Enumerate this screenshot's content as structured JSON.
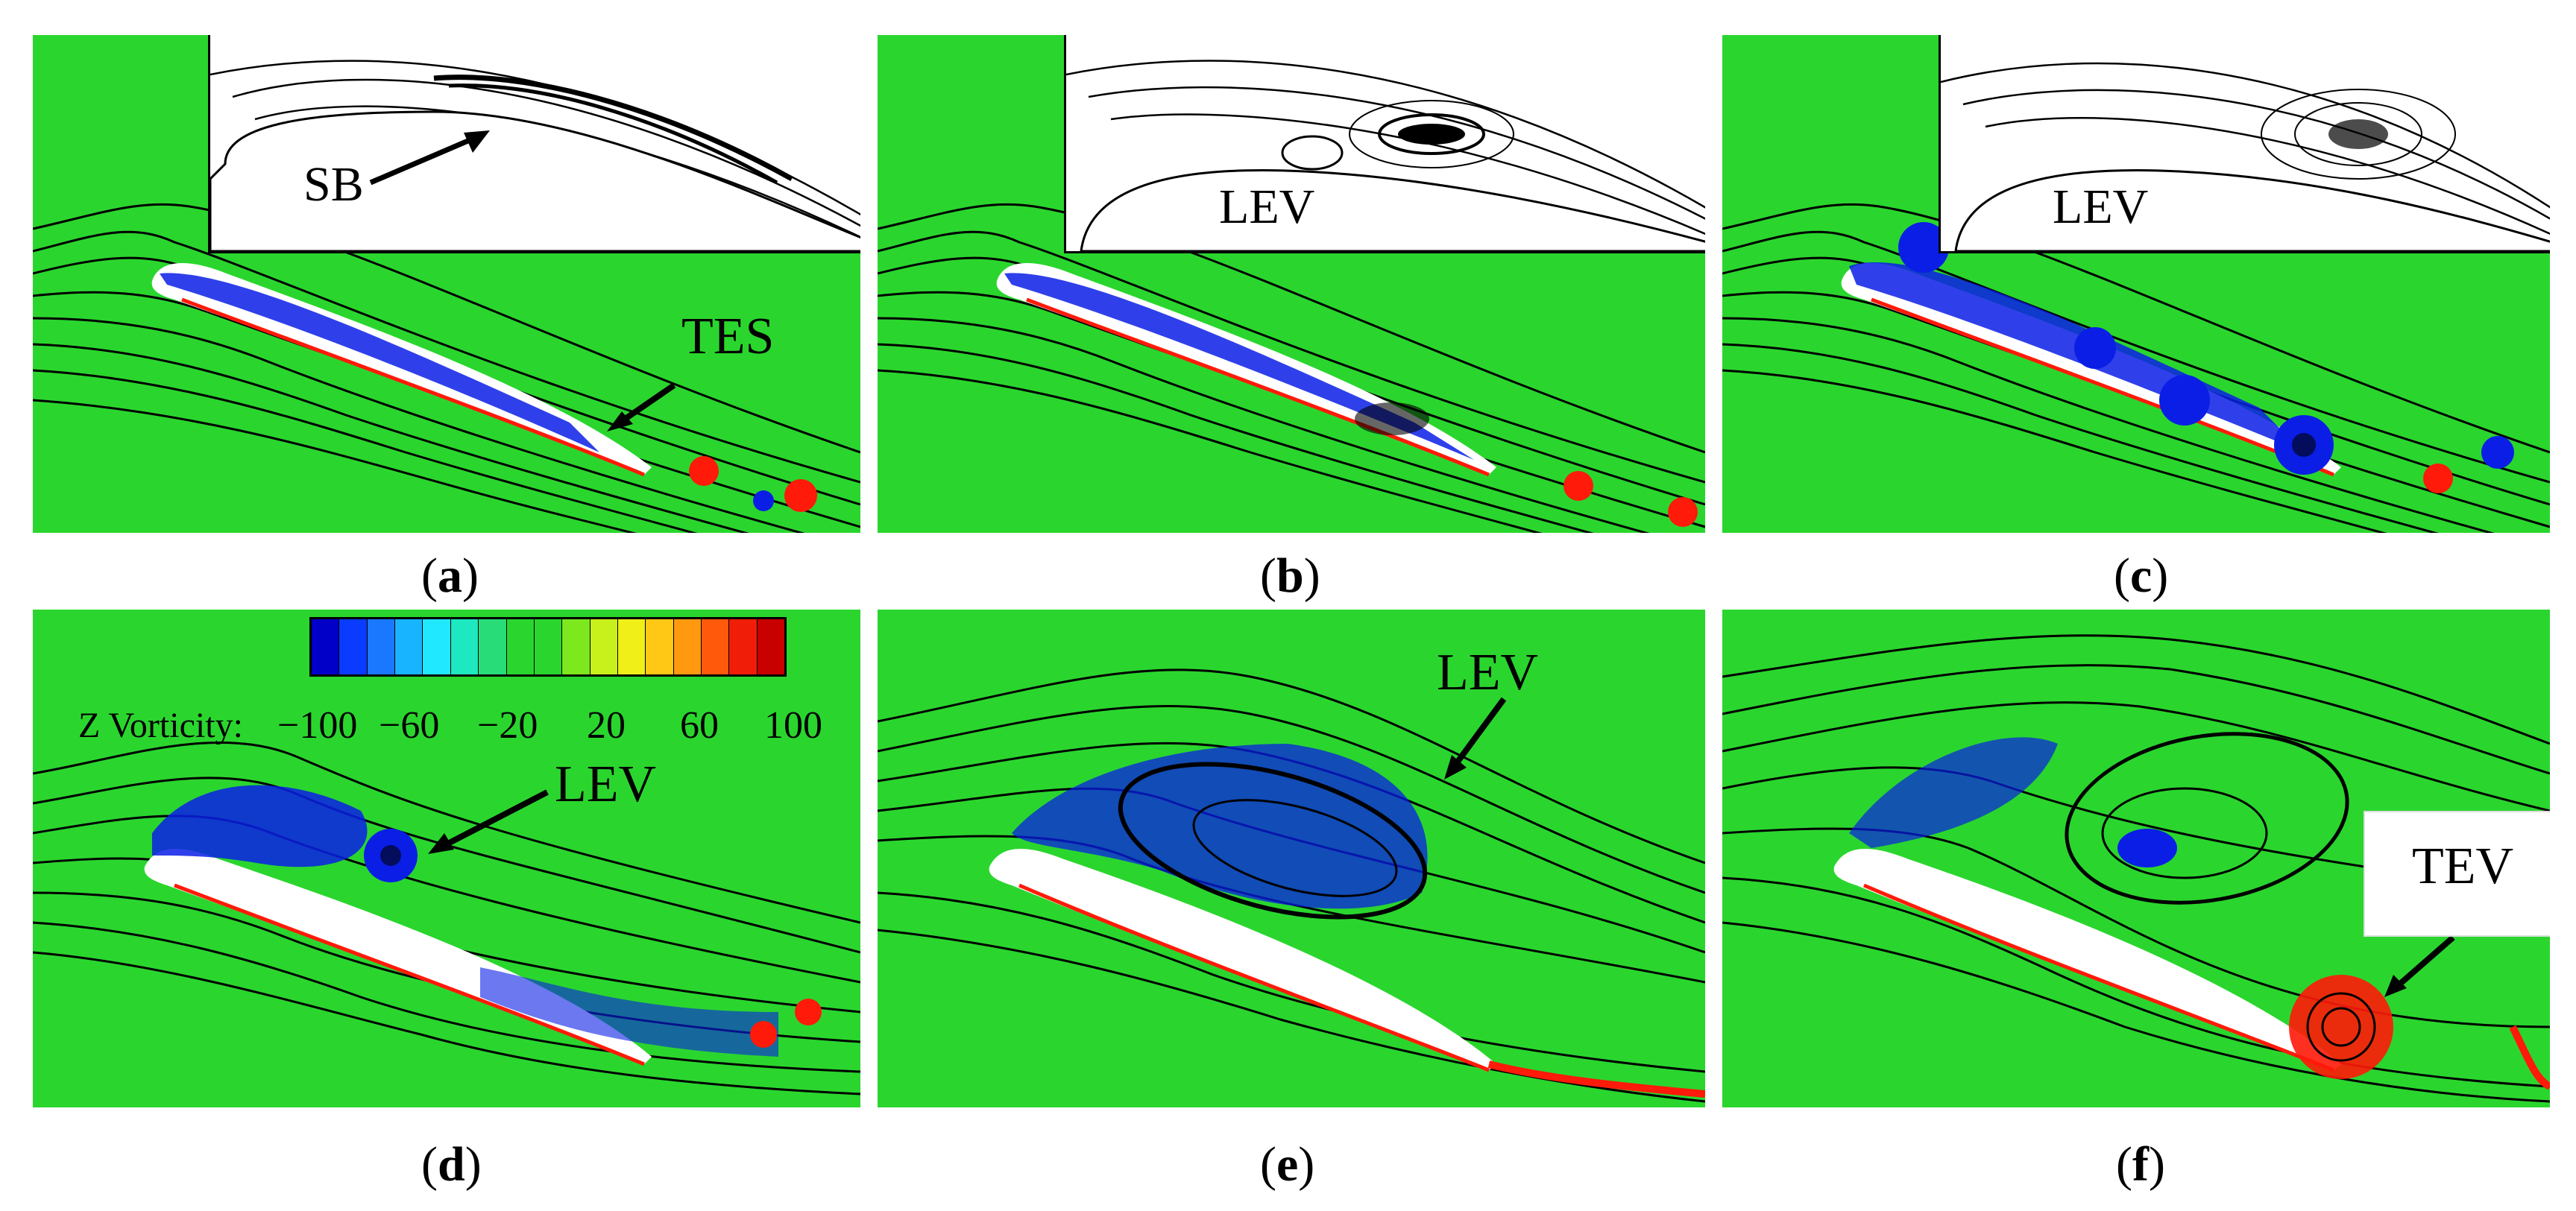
{
  "panels": [
    {
      "id": "a",
      "caption_open": "(",
      "caption_letter": "a",
      "caption_close": ")",
      "inset_label": "SB",
      "annotation": "TES"
    },
    {
      "id": "b",
      "caption_open": "(",
      "caption_letter": "b",
      "caption_close": ")",
      "inset_label": "LEV"
    },
    {
      "id": "c",
      "caption_open": "(",
      "caption_letter": "c",
      "caption_close": ")",
      "inset_label": "LEV"
    },
    {
      "id": "d",
      "caption_open": "(",
      "caption_letter": "d",
      "caption_close": ")",
      "annotation": "LEV"
    },
    {
      "id": "e",
      "caption_open": "(",
      "caption_letter": "e",
      "caption_close": ")",
      "annotation": "LEV"
    },
    {
      "id": "f",
      "caption_open": "(",
      "caption_letter": "f",
      "caption_close": ")",
      "annotation": "TEV"
    }
  ],
  "colorbar": {
    "title": "Z Vorticity:",
    "ticks": [
      "−100",
      "−60",
      "−20",
      "20",
      "60",
      "100"
    ],
    "colors": [
      "#0000c8",
      "#0a3cff",
      "#1a78ff",
      "#18b4ff",
      "#20e8ff",
      "#1ee8c0",
      "#28dc78",
      "#2ad62e",
      "#2ad62e",
      "#7ee81e",
      "#c8f01a",
      "#f0f018",
      "#ffc814",
      "#ff9a10",
      "#ff5a0c",
      "#f01e08",
      "#c80000"
    ]
  },
  "colors": {
    "background_field": "#2ad62e",
    "negative": "#0a1ee6",
    "positive": "#ff1a0a",
    "streamline": "#000000"
  }
}
